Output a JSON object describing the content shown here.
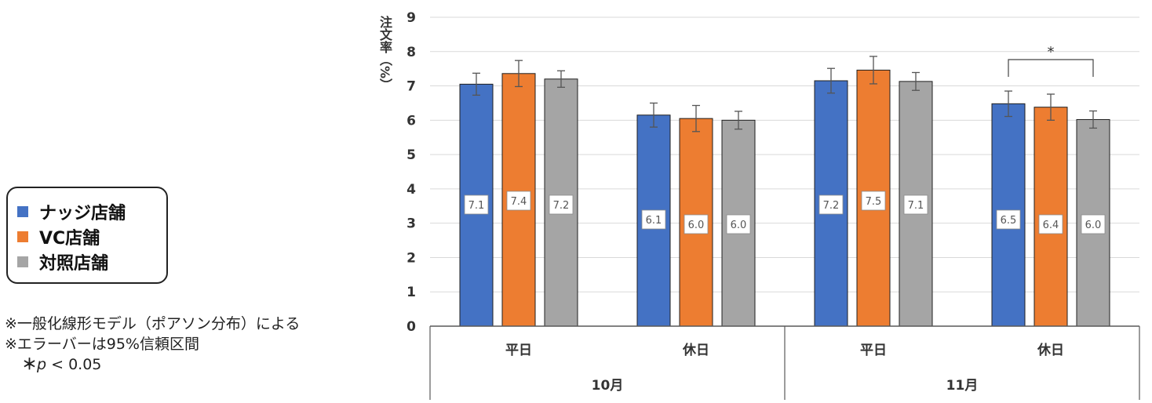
{
  "legend": [
    {
      "name": "ナッジ店舗",
      "color": "#4472C4"
    },
    {
      "name": "VC店舗",
      "color": "#ED7D31"
    },
    {
      "name": "対照店舗",
      "color": "#A5A5A5"
    }
  ],
  "notes": {
    "line1": "※一般化線形モデル（ポアソン分布）による",
    "line2": "※エラーバーは95%信頼区間",
    "sig_star": "＊",
    "sig_p": "p",
    "sig_rest": " < 0.05"
  },
  "chart_data": {
    "type": "bar",
    "ylabel": "注文率（%）",
    "ylim": [
      0,
      9
    ],
    "yticks": [
      0,
      1,
      2,
      3,
      4,
      5,
      6,
      7,
      8,
      9
    ],
    "grid": true,
    "categories": [
      "平日",
      "休日",
      "平日",
      "休日"
    ],
    "groups": [
      {
        "label": "10月",
        "categories": [
          "平日",
          "休日"
        ]
      },
      {
        "label": "11月",
        "categories": [
          "平日",
          "休日"
        ]
      }
    ],
    "series": [
      {
        "name": "ナッジ店舗",
        "color": "#4472C4",
        "values": [
          7.05,
          6.15,
          7.15,
          6.48
        ],
        "labels": [
          "7.1",
          "6.1",
          "7.2",
          "6.5"
        ],
        "err": [
          0.32,
          0.35,
          0.36,
          0.37
        ]
      },
      {
        "name": "VC店舗",
        "color": "#ED7D31",
        "values": [
          7.36,
          6.05,
          7.46,
          6.38
        ],
        "labels": [
          "7.4",
          "6.0",
          "7.5",
          "6.4"
        ],
        "err": [
          0.38,
          0.38,
          0.4,
          0.38
        ]
      },
      {
        "name": "対照店舗",
        "color": "#A5A5A5",
        "values": [
          7.2,
          6.0,
          7.13,
          6.02
        ],
        "labels": [
          "7.2",
          "6.0",
          "7.1",
          "6.0"
        ],
        "err": [
          0.24,
          0.26,
          0.26,
          0.25
        ]
      }
    ],
    "significance": [
      {
        "category_index": 3,
        "from_series": 0,
        "to_series": 2,
        "label": "*"
      }
    ]
  }
}
